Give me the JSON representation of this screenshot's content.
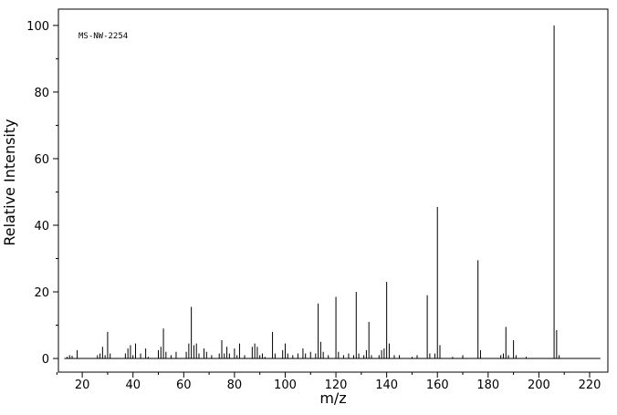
{
  "chart_data": {
    "type": "stem",
    "annotation": "MS-NW-2254",
    "x_label": "m/z",
    "y_label": "Relative Intensity",
    "xlim": [
      10.6,
      227.2
    ],
    "ylim": [
      -4.1,
      104.9
    ],
    "xticks": [
      20,
      40,
      60,
      80,
      100,
      120,
      140,
      160,
      180,
      200,
      220
    ],
    "x_minor_ticks": [
      10,
      30,
      50,
      70,
      90,
      110,
      130,
      150,
      170,
      190,
      210
    ],
    "yticks": [
      0,
      20,
      40,
      60,
      80,
      100
    ],
    "y_minor_ticks": [
      10,
      30,
      50,
      70,
      90
    ],
    "color": "#000000",
    "x": [
      14,
      15,
      16,
      18,
      26,
      27,
      28,
      29,
      30,
      31,
      37,
      38,
      39,
      40,
      41,
      43,
      45,
      46,
      50,
      51,
      52,
      53,
      55,
      57,
      61,
      62,
      63,
      64,
      65,
      66,
      68,
      69,
      71,
      74,
      75,
      76,
      77,
      78,
      80,
      81,
      82,
      84,
      87,
      88,
      89,
      90,
      91,
      92,
      95,
      96,
      99,
      100,
      101,
      103,
      105,
      107,
      108,
      110,
      112,
      113,
      114,
      115,
      117,
      120,
      121,
      123,
      125,
      127,
      128,
      129,
      131,
      132,
      133,
      134,
      137,
      138,
      139,
      140,
      141,
      143,
      145,
      150,
      152,
      156,
      157,
      159,
      160,
      161,
      166,
      170,
      176,
      177,
      185,
      186,
      187,
      188,
      190,
      191,
      195,
      206,
      207,
      208
    ],
    "values": [
      0.5,
      1,
      0.8,
      2.5,
      1,
      1.5,
      3.5,
      1,
      8,
      1.5,
      1.5,
      3,
      4,
      1,
      4.5,
      1.5,
      3,
      0.5,
      2.5,
      3.5,
      9,
      2,
      1,
      2,
      2,
      4.5,
      15.5,
      4,
      4.5,
      1.5,
      3,
      2,
      1,
      1.5,
      5.5,
      1.5,
      3.5,
      1.5,
      3,
      1,
      4.5,
      1,
      3.5,
      4.5,
      3.5,
      1,
      1.5,
      0.5,
      8,
      1.5,
      2.5,
      4.5,
      1.5,
      1,
      1.5,
      3,
      1.5,
      2,
      1.5,
      16.5,
      5,
      2,
      1,
      18.5,
      2,
      1,
      1.5,
      1,
      20,
      1.5,
      1,
      2.5,
      11,
      1,
      1,
      2.5,
      3,
      23,
      4.5,
      1,
      1,
      0.5,
      1,
      19,
      1.5,
      1.5,
      45.5,
      4,
      0.5,
      1,
      29.5,
      2.5,
      1,
      1.5,
      9.5,
      1,
      5.5,
      1,
      0.5,
      100,
      8.5,
      1
    ]
  }
}
